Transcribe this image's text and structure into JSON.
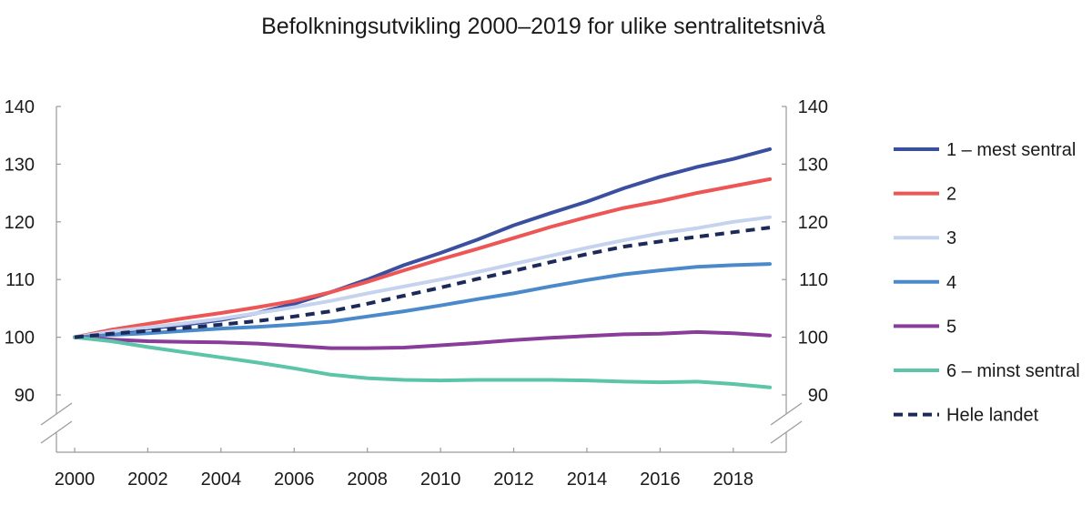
{
  "chart_data": {
    "type": "line",
    "title": "Befolkningsutvikling 2000–2019 for ulike sentralitetsnivå",
    "xlabel": "",
    "ylabel": "",
    "x": [
      2000,
      2001,
      2002,
      2003,
      2004,
      2005,
      2006,
      2007,
      2008,
      2009,
      2010,
      2011,
      2012,
      2013,
      2014,
      2015,
      2016,
      2017,
      2018,
      2019
    ],
    "x_ticks": [
      2000,
      2002,
      2004,
      2006,
      2008,
      2010,
      2012,
      2014,
      2016,
      2018
    ],
    "x_tick_labels": [
      "2000",
      "2002",
      "2004",
      "2006",
      "2008",
      "2010",
      "2012",
      "2014",
      "2016",
      "2018"
    ],
    "xlim": [
      2000,
      2019
    ],
    "ylim": [
      90,
      140
    ],
    "y_ticks": [
      90,
      100,
      110,
      120,
      130,
      140
    ],
    "y_tick_labels": [
      "90",
      "100",
      "110",
      "120",
      "130",
      "140"
    ],
    "axis_break": true,
    "grid": false,
    "legend_position": "right",
    "series": [
      {
        "name": "1 – mest sentral",
        "color": "#3a4fa0",
        "dashed": false,
        "values": [
          100,
          100.8,
          101.5,
          102.2,
          103.0,
          104.2,
          105.8,
          107.8,
          110.0,
          112.5,
          114.6,
          116.9,
          119.4,
          121.5,
          123.5,
          125.8,
          127.8,
          129.5,
          130.9,
          132.6
        ]
      },
      {
        "name": "2",
        "color": "#ee5555",
        "dashed": false,
        "values": [
          100,
          101.3,
          102.3,
          103.3,
          104.2,
          105.2,
          106.3,
          107.8,
          109.6,
          111.6,
          113.5,
          115.3,
          117.2,
          119.1,
          120.8,
          122.4,
          123.6,
          125.0,
          126.2,
          127.4
        ]
      },
      {
        "name": "3",
        "color": "#c5d3ee",
        "dashed": false,
        "values": [
          100,
          101.0,
          101.7,
          102.4,
          103.2,
          104.2,
          105.2,
          106.3,
          107.6,
          108.8,
          110.0,
          111.3,
          112.7,
          114.1,
          115.5,
          116.8,
          118.0,
          118.9,
          120.0,
          120.8
        ]
      },
      {
        "name": "4",
        "color": "#4a8acb",
        "dashed": false,
        "values": [
          100,
          100.4,
          100.7,
          101.1,
          101.5,
          101.8,
          102.2,
          102.7,
          103.6,
          104.5,
          105.5,
          106.6,
          107.6,
          108.8,
          109.9,
          110.9,
          111.6,
          112.2,
          112.5,
          112.7
        ]
      },
      {
        "name": "5",
        "color": "#8a3c9a",
        "dashed": false,
        "values": [
          100,
          99.6,
          99.3,
          99.2,
          99.1,
          98.9,
          98.5,
          98.1,
          98.1,
          98.2,
          98.6,
          99.0,
          99.5,
          99.9,
          100.2,
          100.5,
          100.6,
          100.9,
          100.7,
          100.3
        ]
      },
      {
        "name": "6 – minst sentral",
        "color": "#5cc4a8",
        "dashed": false,
        "values": [
          100,
          99.3,
          98.3,
          97.4,
          96.5,
          95.6,
          94.6,
          93.5,
          92.9,
          92.6,
          92.5,
          92.6,
          92.6,
          92.6,
          92.5,
          92.3,
          92.2,
          92.3,
          91.9,
          91.3
        ]
      },
      {
        "name": "Hele landet",
        "color": "#1c2a5a",
        "dashed": true,
        "values": [
          100,
          100.6,
          101.1,
          101.6,
          102.2,
          102.8,
          103.6,
          104.5,
          105.8,
          107.2,
          108.6,
          110.1,
          111.5,
          113.0,
          114.4,
          115.7,
          116.6,
          117.4,
          118.2,
          119.0
        ]
      }
    ]
  }
}
